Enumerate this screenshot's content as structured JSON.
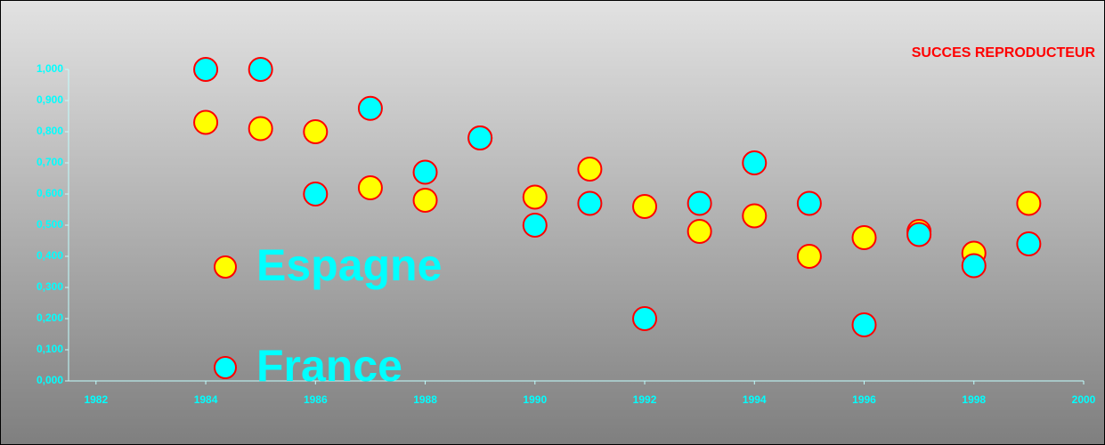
{
  "chart_data": {
    "type": "scatter",
    "title": "SUCCES REPRODUCTEUR",
    "series": [
      {
        "name": "Espagne",
        "color": "#ffff00",
        "x": [
          1984,
          1985,
          1986,
          1987,
          1988,
          1989,
          1990,
          1991,
          1992,
          1993,
          1994,
          1995,
          1996,
          1997,
          1998,
          1999
        ],
        "values": [
          0.83,
          0.81,
          0.8,
          0.62,
          0.58,
          0.78,
          0.59,
          0.68,
          0.56,
          0.48,
          0.53,
          0.4,
          0.46,
          0.48,
          0.41,
          0.57
        ]
      },
      {
        "name": "France",
        "color": "#00ffff",
        "x": [
          1984,
          1985,
          1986,
          1987,
          1988,
          1989,
          1990,
          1991,
          1992,
          1993,
          1994,
          1995,
          1996,
          1997,
          1998,
          1999
        ],
        "values": [
          1.0,
          1.0,
          0.6,
          0.875,
          0.67,
          0.78,
          0.5,
          0.57,
          0.2,
          0.57,
          0.7,
          0.57,
          0.18,
          0.47,
          0.37,
          0.44
        ]
      }
    ],
    "marker_edge_color": "#ff0000",
    "xlim": [
      1981.5,
      2000
    ],
    "xticks": [
      1982,
      1984,
      1986,
      1988,
      1990,
      1992,
      1994,
      1996,
      1998,
      2000
    ],
    "ylim": [
      0,
      1
    ],
    "yticks": [
      {
        "value": 0,
        "label": "0,000"
      },
      {
        "value": 0.1,
        "label": "0,100"
      },
      {
        "value": 0.2,
        "label": "0,200"
      },
      {
        "value": 0.3,
        "label": "0,300"
      },
      {
        "value": 0.4,
        "label": "0,400"
      },
      {
        "value": 0.5,
        "label": "0,500"
      },
      {
        "value": 0.6,
        "label": "0,600"
      },
      {
        "value": 0.7,
        "label": "0,700"
      },
      {
        "value": 0.8,
        "label": "0,800"
      },
      {
        "value": 0.9,
        "label": "0,900"
      },
      {
        "value": 1.0,
        "label": "1,000"
      }
    ],
    "legend": "lower left"
  }
}
